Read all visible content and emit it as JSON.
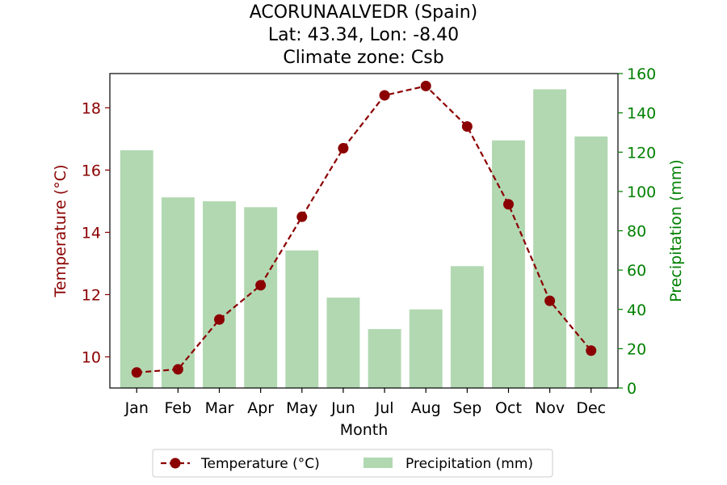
{
  "chart_data": {
    "type": "bar",
    "title_lines": [
      "ACORUNAALVEDR (Spain)",
      "Lat: 43.34, Lon: -8.40",
      "Climate zone: Csb"
    ],
    "xlabel": "Month",
    "ylabel_left": "Temperature (°C)",
    "ylabel_right": "Precipitation (mm)",
    "categories": [
      "Jan",
      "Feb",
      "Mar",
      "Apr",
      "May",
      "Jun",
      "Jul",
      "Aug",
      "Sep",
      "Oct",
      "Nov",
      "Dec"
    ],
    "ylim_left": [
      9.0,
      19.1
    ],
    "ylim_right": [
      0,
      160
    ],
    "yticks_left": [
      10,
      12,
      14,
      16,
      18
    ],
    "yticks_right": [
      0,
      20,
      40,
      60,
      80,
      100,
      120,
      140,
      160
    ],
    "grid": false,
    "legend_placement": "bottom-center",
    "series": [
      {
        "name": "Temperature (°C)",
        "kind": "line",
        "axis": "left",
        "color": "#8b0000",
        "line_style": "dashed",
        "marker": "circle",
        "values": [
          9.5,
          9.6,
          11.2,
          12.3,
          14.5,
          16.7,
          18.4,
          18.7,
          17.4,
          14.9,
          11.8,
          10.2
        ]
      },
      {
        "name": "Precipitation (mm)",
        "kind": "bar",
        "axis": "right",
        "color": "#b2d8b2",
        "values": [
          121,
          97,
          95,
          92,
          70,
          46,
          30,
          40,
          62,
          126,
          152,
          128
        ]
      }
    ],
    "colors": {
      "left_axis": "#8b0000",
      "right_axis": "#008000",
      "axes_frame": "#000000"
    }
  }
}
